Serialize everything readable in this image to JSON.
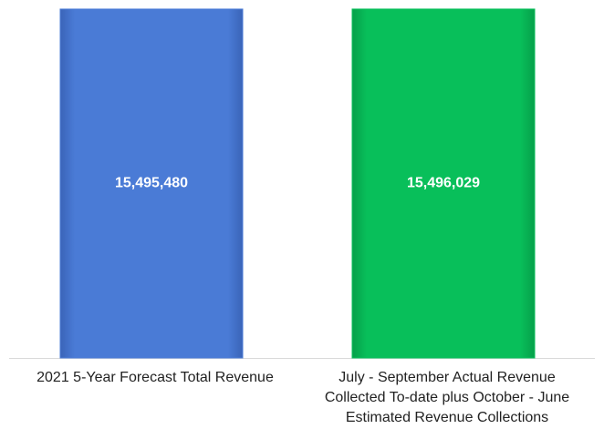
{
  "chart_data": {
    "type": "bar",
    "categories": [
      "2021 5-Year Forecast Total Revenue",
      "July - September Actual Revenue Collected To-date plus October - June Estimated Revenue Collections"
    ],
    "values": [
      15495480,
      15496029
    ],
    "value_labels": [
      "15,495,480",
      "15,496,029"
    ],
    "colors": [
      "#4a7bd6",
      "#08bf5a"
    ],
    "ylim": [
      0,
      16000000
    ]
  }
}
